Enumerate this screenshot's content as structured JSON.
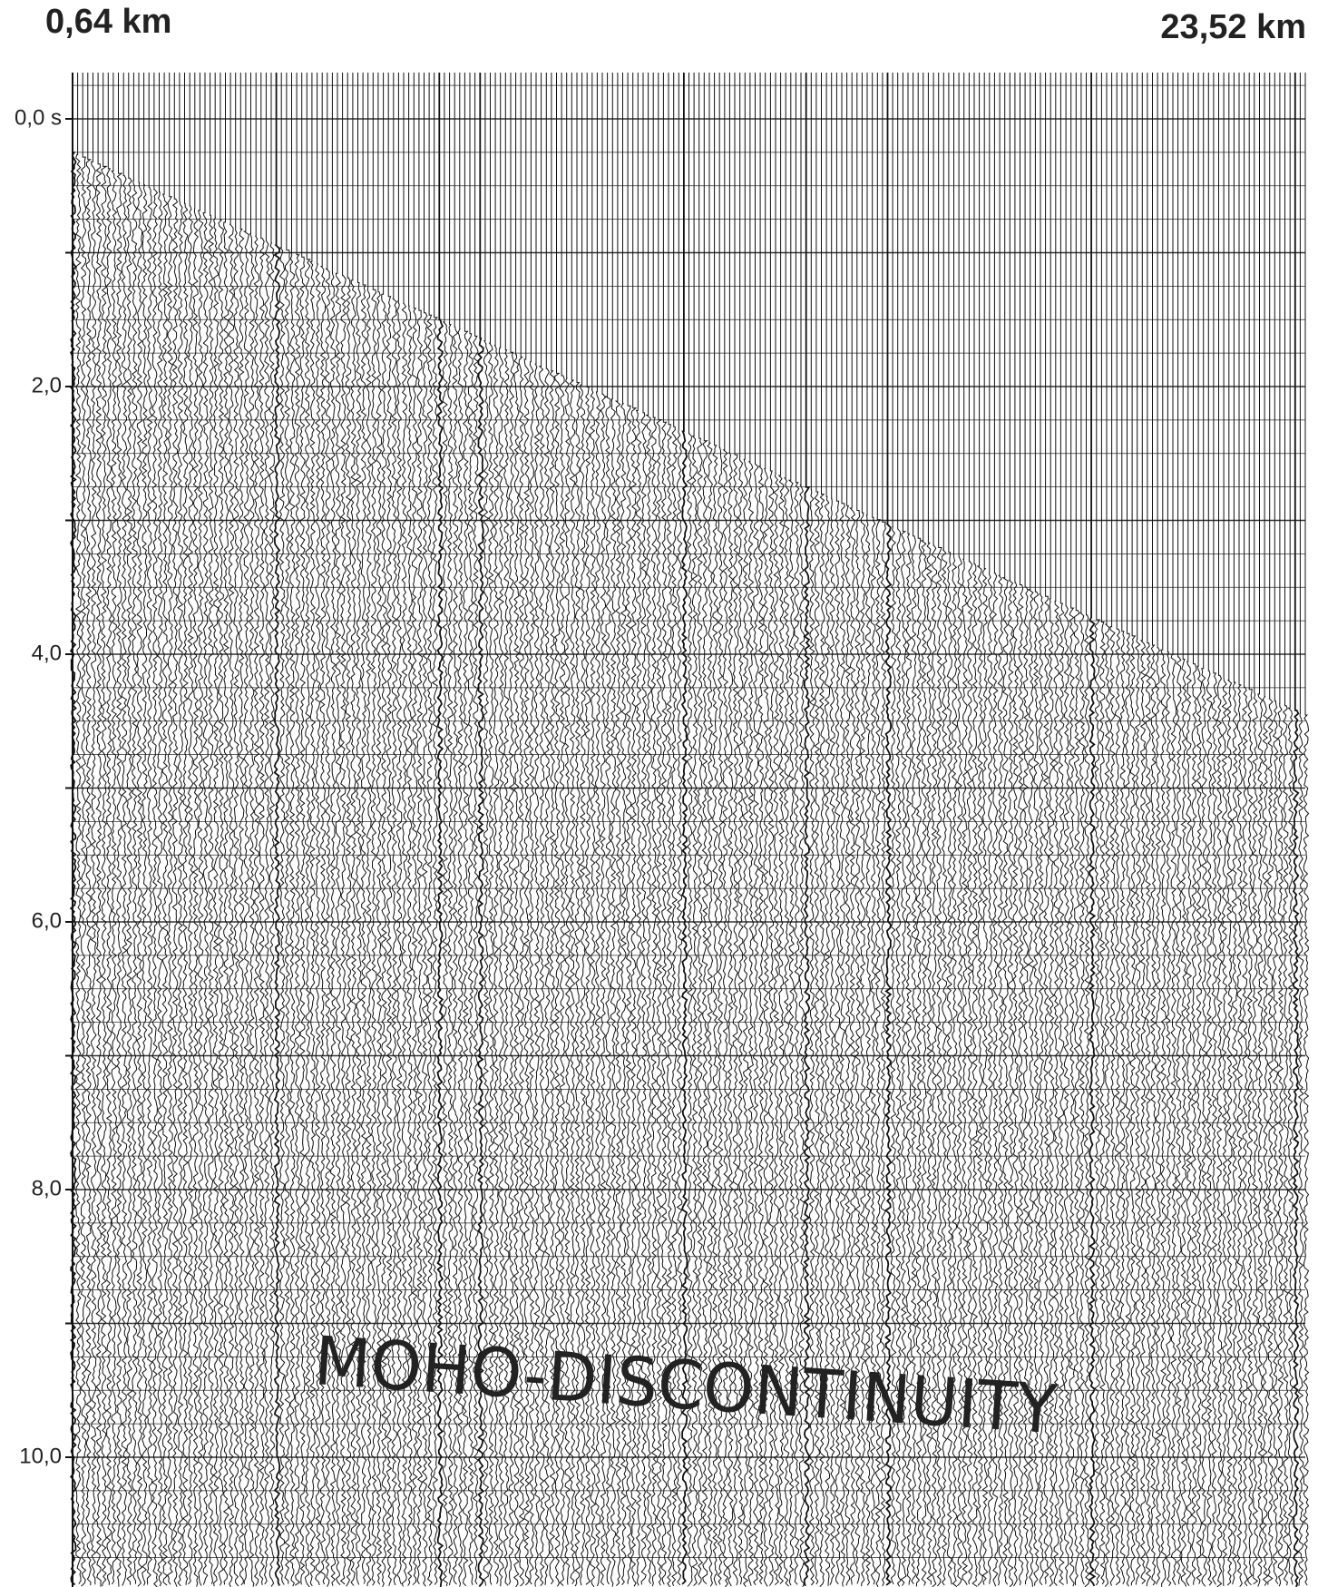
{
  "header": {
    "left_distance": "0,64 km",
    "right_distance": "23,52 km"
  },
  "time_axis": {
    "labels": [
      "0,0 s",
      "2,0",
      "4,0",
      "6,0",
      "8,0",
      "10,0"
    ]
  },
  "annotation": "MOHO-DISCONTINUITY"
}
